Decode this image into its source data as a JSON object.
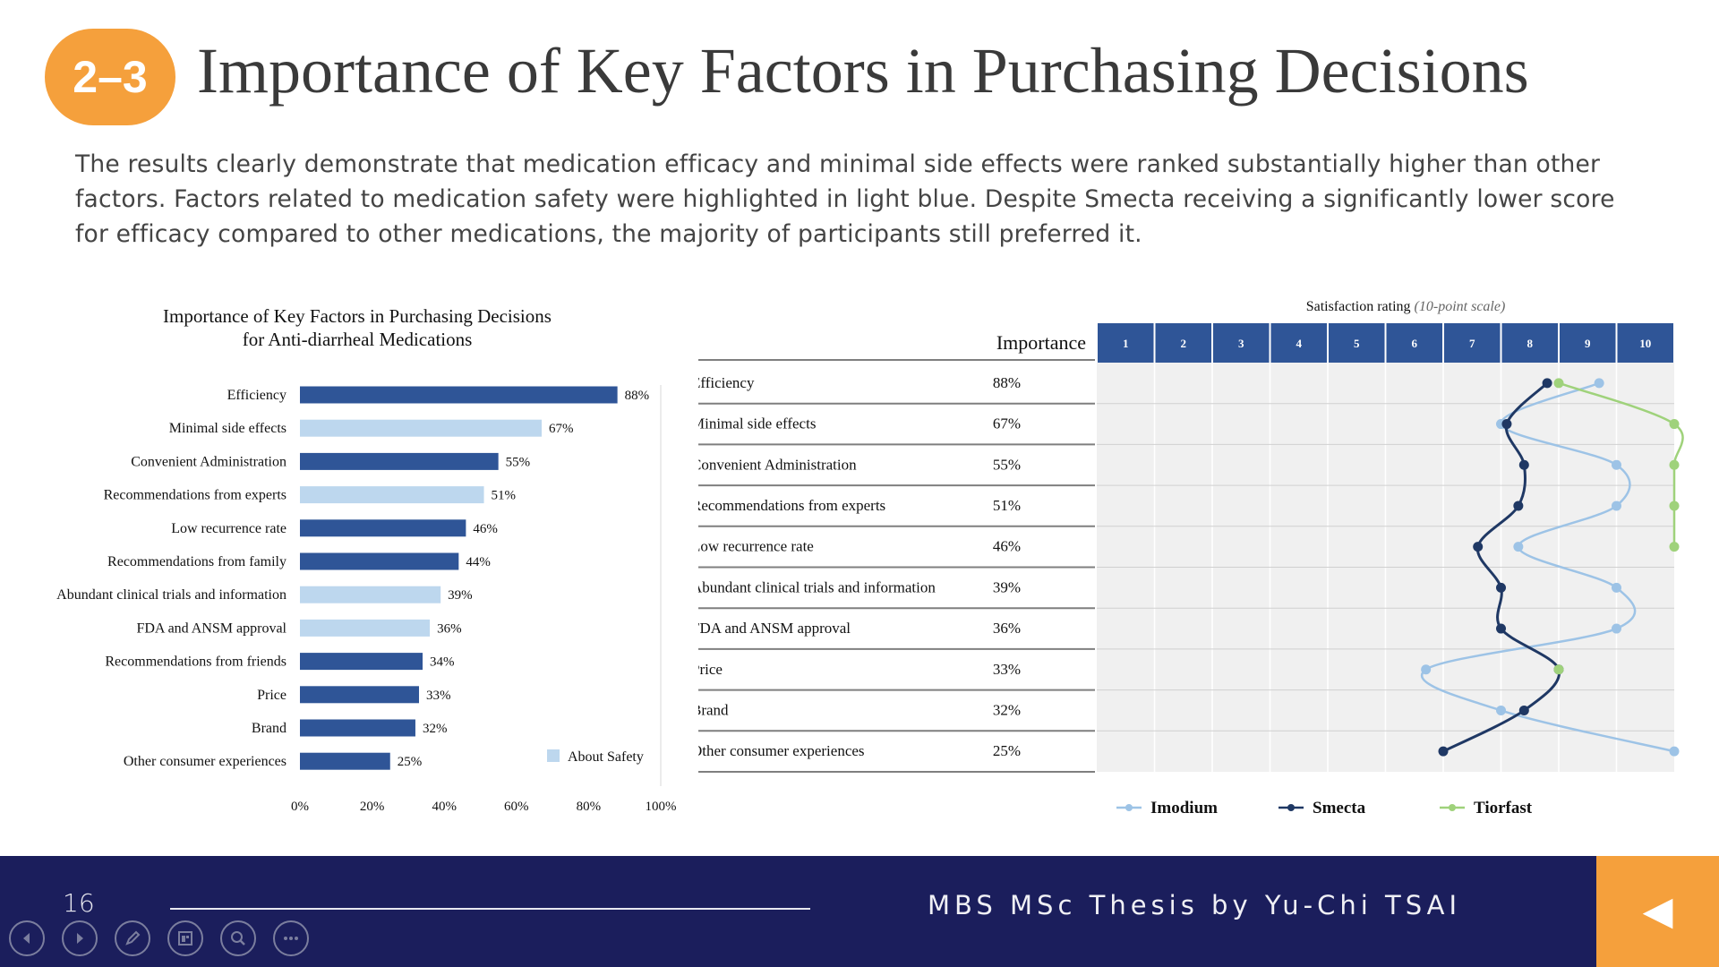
{
  "slide": {
    "badge": "2–3",
    "title": "Importance of Key Factors in Purchasing Decisions",
    "description": "The results clearly demonstrate that medication efficacy and minimal side effects were ranked substantially higher than other factors. Factors related to medication safety were highlighted in light blue. Despite Smecta receiving a significantly lower score for efficacy compared to other medications, the majority of participants still preferred it."
  },
  "footer": {
    "page_number": "16",
    "author": "MBS MSc Thesis by Yu-Chi TSAI",
    "controls": [
      "back-icon",
      "forward-icon",
      "pen-icon",
      "slides-icon",
      "zoom-icon",
      "more-icon"
    ],
    "back_arrow": "◀"
  },
  "colors": {
    "dark_bar": "#2f5597",
    "safety_bar": "#bdd7ee",
    "imodium": "#9dc3e6",
    "smecta": "#1f3864",
    "tiorfast": "#9fd27b",
    "header_cell": "#2f5597",
    "accent": "#f5a03c",
    "footer_bg": "#1b1e5c"
  },
  "chart_data": [
    {
      "type": "bar",
      "orientation": "horizontal",
      "title_line1": "Importance of Key Factors in Purchasing Decisions",
      "title_line2": "for Anti-diarrheal Medications",
      "categories": [
        "Efficiency",
        "Minimal side effects",
        "Convenient Administration",
        "Recommendations from experts",
        "Low recurrence rate",
        "Recommendations from family",
        "Abundant clinical trials and information",
        "FDA and ANSM approval",
        "Recommendations from friends",
        "Price",
        "Brand",
        "Other consumer experiences"
      ],
      "values": [
        88,
        67,
        55,
        51,
        46,
        44,
        39,
        36,
        34,
        33,
        32,
        25
      ],
      "value_labels": [
        "88%",
        "67%",
        "55%",
        "51%",
        "46%",
        "44%",
        "39%",
        "36%",
        "34%",
        "33%",
        "32%",
        "25%"
      ],
      "about_safety": [
        false,
        true,
        false,
        true,
        false,
        false,
        true,
        true,
        false,
        false,
        false,
        false
      ],
      "xlim": [
        0,
        100
      ],
      "x_ticks": [
        "0%",
        "20%",
        "40%",
        "60%",
        "80%",
        "100%"
      ],
      "legend": "About Safety",
      "legend_position": "bottom-right",
      "grid": false
    },
    {
      "type": "line",
      "orientation": "vertical-rows",
      "title": "Satisfaction rating",
      "title_note": "(10-point scale)",
      "importance_header": "Importance",
      "scale_ticks": [
        "1",
        "2",
        "3",
        "4",
        "5",
        "6",
        "7",
        "8",
        "9",
        "10"
      ],
      "xlim": [
        0.5,
        10.5
      ],
      "rows": [
        {
          "label": "Efficiency",
          "importance": "88%"
        },
        {
          "label": "Minimal side effects",
          "importance": "67%"
        },
        {
          "label": "Convenient Administration",
          "importance": "55%"
        },
        {
          "label": "Recommendations from experts",
          "importance": "51%"
        },
        {
          "label": "Low recurrence rate",
          "importance": "46%"
        },
        {
          "label": "Abundant clinical trials and information",
          "importance": "39%"
        },
        {
          "label": "FDA and ANSM approval",
          "importance": "36%"
        },
        {
          "label": "Price",
          "importance": "33%"
        },
        {
          "label": "Brand",
          "importance": "32%"
        },
        {
          "label": "Other consumer experiences",
          "importance": "25%"
        }
      ],
      "series": [
        {
          "name": "Imodium",
          "values": [
            9.2,
            7.5,
            9.5,
            9.5,
            7.8,
            9.5,
            9.5,
            6.2,
            7.5,
            10.5
          ]
        },
        {
          "name": "Smecta",
          "values": [
            8.3,
            7.6,
            7.9,
            7.8,
            7.1,
            7.5,
            7.5,
            8.5,
            7.9,
            6.5
          ]
        },
        {
          "name": "Tiorfast",
          "values": [
            8.5,
            10.5,
            10.5,
            10.5,
            10.5,
            null,
            null,
            8.5,
            null,
            null
          ]
        }
      ],
      "legend_position": "bottom",
      "grid": true
    }
  ]
}
